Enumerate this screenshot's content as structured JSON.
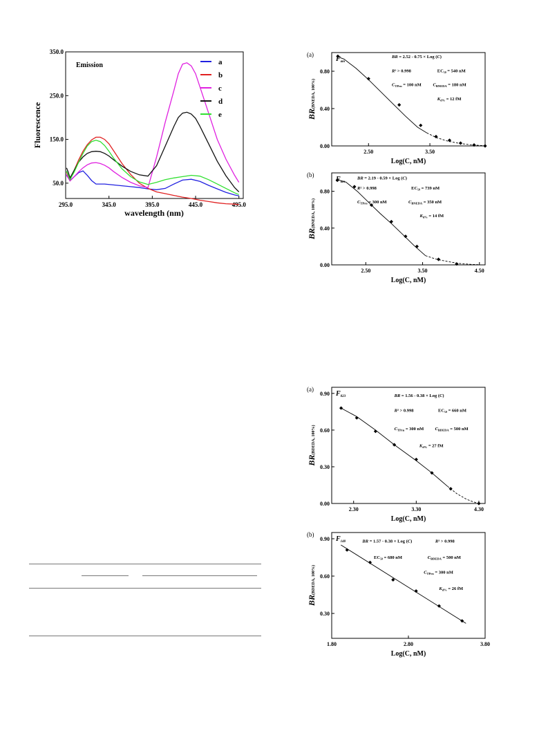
{
  "chart_data": [
    {
      "type": "line",
      "title": "Emission",
      "xlabel": "wavelength (nm)",
      "ylabel": "Fluorescence",
      "xlim": [
        295,
        500
      ],
      "ylim": [
        15,
        350
      ],
      "xticks": [
        "295.0",
        "345.0",
        "395.0",
        "445.0",
        "495.0"
      ],
      "yticks": [
        "50.0",
        "150.0",
        "250.0",
        "350.0"
      ],
      "legend_position": "top-right",
      "series": [
        {
          "name": "a",
          "color": "#2020e0",
          "x": [
            296,
            298,
            300,
            305,
            310,
            315,
            320,
            325,
            330,
            340,
            350,
            360,
            370,
            380,
            390,
            400,
            410,
            420,
            430,
            440,
            450,
            460,
            470,
            480,
            490,
            495
          ],
          "y": [
            68,
            62,
            56,
            65,
            74,
            78,
            68,
            56,
            48,
            48,
            46,
            44,
            42,
            40,
            37,
            35,
            38,
            48,
            57,
            59,
            54,
            45,
            37,
            29,
            23,
            21
          ]
        },
        {
          "name": "b",
          "color": "#e02020",
          "x": [
            296,
            298,
            300,
            305,
            310,
            315,
            320,
            325,
            330,
            335,
            340,
            345,
            350,
            360,
            370,
            380,
            390,
            400,
            410,
            420,
            430,
            440,
            450,
            460,
            470,
            480,
            490,
            495
          ],
          "y": [
            75,
            66,
            58,
            80,
            103,
            123,
            138,
            149,
            155,
            155,
            150,
            140,
            125,
            95,
            70,
            50,
            38,
            30,
            26,
            22,
            18,
            15,
            11,
            8,
            5,
            3,
            2,
            1
          ]
        },
        {
          "name": "c",
          "color": "#e020e0",
          "x": [
            296,
            298,
            300,
            305,
            310,
            315,
            320,
            325,
            330,
            335,
            340,
            345,
            350,
            360,
            370,
            380,
            390,
            400,
            410,
            420,
            425,
            430,
            435,
            440,
            445,
            450,
            460,
            470,
            480,
            490,
            495
          ],
          "y": [
            70,
            62,
            55,
            65,
            76,
            85,
            92,
            96,
            97,
            95,
            91,
            85,
            77,
            63,
            52,
            44,
            40,
            110,
            190,
            262,
            300,
            322,
            325,
            318,
            300,
            270,
            210,
            150,
            105,
            68,
            52
          ]
        },
        {
          "name": "d",
          "color": "#111111",
          "x": [
            296,
            298,
            300,
            305,
            310,
            315,
            320,
            325,
            330,
            335,
            340,
            345,
            350,
            360,
            370,
            380,
            390,
            400,
            410,
            420,
            425,
            430,
            435,
            440,
            445,
            450,
            460,
            470,
            480,
            490,
            495
          ],
          "y": [
            85,
            75,
            62,
            80,
            98,
            110,
            118,
            122,
            123,
            122,
            118,
            112,
            104,
            89,
            77,
            69,
            66,
            90,
            135,
            180,
            200,
            210,
            212,
            208,
            198,
            180,
            140,
            100,
            67,
            40,
            30
          ]
        },
        {
          "name": "e",
          "color": "#30e030",
          "x": [
            296,
            298,
            300,
            305,
            310,
            315,
            320,
            325,
            330,
            335,
            340,
            345,
            350,
            360,
            370,
            380,
            390,
            400,
            410,
            420,
            430,
            440,
            450,
            460,
            470,
            480,
            490,
            495
          ],
          "y": [
            78,
            68,
            58,
            76,
            98,
            118,
            135,
            145,
            148,
            145,
            136,
            123,
            108,
            83,
            65,
            53,
            47,
            52,
            58,
            62,
            65,
            68,
            66,
            58,
            48,
            38,
            28,
            24
          ]
        }
      ]
    },
    {
      "type": "scatter",
      "panel_label": "(a)",
      "fp_label_main": "F",
      "fp_label_sub": "am",
      "xlabel": "Log(C, nM)",
      "ylabel_main": "BR",
      "ylabel_sub": "(BNEDA, 100%)",
      "xlim": [
        1.9,
        4.4
      ],
      "ylim": [
        0,
        1.0
      ],
      "xticks": [
        {
          "v": 2.5,
          "label": "2.50"
        },
        {
          "v": 3.5,
          "label": "3.50"
        }
      ],
      "yticks": [
        {
          "v": 0,
          "label": "0.00"
        },
        {
          "v": 0.4,
          "label": "0.40"
        },
        {
          "v": 0.8,
          "label": "0.80"
        }
      ],
      "annotations": [
        {
          "text": "BR = 2.52 - 0.75 × Log (C)",
          "x": 2.88,
          "y": 0.94
        },
        {
          "text": "R² > 0.998",
          "x": 2.88,
          "y": 0.79
        },
        {
          "text": "EC₅₀ = 540 nM",
          "x": 3.62,
          "y": 0.79
        },
        {
          "text": "C_TPrn = 100 nM",
          "x": 2.88,
          "y": 0.64
        },
        {
          "text": "C_BNEDA = 180 nM",
          "x": 3.55,
          "y": 0.64
        },
        {
          "text": "K_d% = 12 fM",
          "x": 3.62,
          "y": 0.49
        }
      ],
      "points": {
        "x": [
          2.0,
          2.5,
          3.0,
          3.35,
          3.6,
          3.82,
          4.0,
          4.22,
          4.4
        ],
        "y": [
          0.96,
          0.72,
          0.44,
          0.22,
          0.1,
          0.06,
          0.03,
          0.01,
          0.0
        ]
      },
      "fit_solid": {
        "x": [
          1.98,
          2.1,
          2.3,
          2.5,
          2.7,
          2.9,
          3.1,
          3.3,
          3.45
        ],
        "y": [
          0.96,
          0.93,
          0.83,
          0.71,
          0.58,
          0.45,
          0.32,
          0.2,
          0.14
        ]
      },
      "fit_dashed": {
        "x": [
          3.45,
          3.6,
          3.8,
          4.0,
          4.2,
          4.4
        ],
        "y": [
          0.14,
          0.09,
          0.05,
          0.025,
          0.01,
          0.002
        ]
      }
    },
    {
      "type": "scatter",
      "panel_label": "(b)",
      "fp_label_main": "F",
      "fp_label_sub": "am",
      "xlabel": "Log(C, nM)",
      "ylabel_main": "BR",
      "ylabel_sub": "(BNEDA, 100%)",
      "xlim": [
        1.9,
        4.6
      ],
      "ylim": [
        0,
        1.0
      ],
      "xticks": [
        {
          "v": 2.5,
          "label": "2.50"
        },
        {
          "v": 3.5,
          "label": "3.50"
        },
        {
          "v": 4.5,
          "label": "4.50"
        }
      ],
      "yticks": [
        {
          "v": 0,
          "label": "0.00"
        },
        {
          "v": 0.4,
          "label": "0.40"
        },
        {
          "v": 0.8,
          "label": "0.80"
        }
      ],
      "annotations": [
        {
          "text": "BR = 2.19 - 0.59 × Log (C)",
          "x": 2.35,
          "y": 0.93
        },
        {
          "text": "R² > 0.998",
          "x": 2.35,
          "y": 0.82
        },
        {
          "text": "EC₅₀ = 739 nM",
          "x": 3.3,
          "y": 0.82
        },
        {
          "text": "C_TPrn = 300 nM",
          "x": 2.35,
          "y": 0.67
        },
        {
          "text": "C_BNEDA = 350 nM",
          "x": 3.25,
          "y": 0.67
        },
        {
          "text": "K_d% = 14 fM",
          "x": 3.45,
          "y": 0.52
        }
      ],
      "points": {
        "x": [
          2.0,
          2.3,
          2.6,
          2.95,
          3.2,
          3.4,
          3.78,
          4.1
        ],
        "y": [
          0.92,
          0.85,
          0.65,
          0.47,
          0.31,
          0.2,
          0.06,
          0.01
        ]
      },
      "fit_solid": {
        "x": [
          1.98,
          2.15,
          2.35,
          2.55,
          2.75,
          2.95,
          3.15,
          3.35,
          3.55
        ],
        "y": [
          0.93,
          0.9,
          0.8,
          0.68,
          0.56,
          0.45,
          0.33,
          0.21,
          0.1
        ]
      },
      "fit_dashed": {
        "x": [
          3.55,
          3.75,
          3.95,
          4.15,
          4.35,
          4.5
        ],
        "y": [
          0.1,
          0.06,
          0.035,
          0.015,
          0.005,
          0.002
        ]
      }
    },
    {
      "type": "scatter",
      "panel_label": "(a)",
      "fp_label_main": "F",
      "fp_label_sub": "023",
      "xlabel": "Log(C, nM)",
      "ylabel_main": "BR",
      "ylabel_sub": "(BDEDA, 100%)",
      "xlim": [
        1.95,
        4.4
      ],
      "ylim": [
        0,
        0.95
      ],
      "xticks": [
        {
          "v": 2.3,
          "label": "2.30"
        },
        {
          "v": 3.3,
          "label": "3.30"
        },
        {
          "v": 4.3,
          "label": "4.30"
        }
      ],
      "yticks": [
        {
          "v": 0,
          "label": "0.00"
        },
        {
          "v": 0.3,
          "label": "0.30"
        },
        {
          "v": 0.6,
          "label": "0.60"
        },
        {
          "v": 0.9,
          "label": "0.90"
        }
      ],
      "annotations": [
        {
          "text": "BR = 1.56 - 0.38 × Log (C)",
          "x": 2.95,
          "y": 0.87
        },
        {
          "text": "R² > 0.998",
          "x": 2.95,
          "y": 0.75
        },
        {
          "text": "EC₅₀ = 660 nM",
          "x": 3.65,
          "y": 0.75
        },
        {
          "text": "C_TPrn = 300 nM",
          "x": 2.95,
          "y": 0.6
        },
        {
          "text": "C_BDEDA = 500 nM",
          "x": 3.6,
          "y": 0.6
        },
        {
          "text": "K_d% = 27 fM",
          "x": 3.35,
          "y": 0.46
        }
      ],
      "points": {
        "x": [
          2.1,
          2.35,
          2.65,
          2.95,
          3.3,
          3.55,
          3.85,
          4.3
        ],
        "y": [
          0.78,
          0.7,
          0.59,
          0.48,
          0.36,
          0.25,
          0.12,
          0.0
        ]
      },
      "fit_solid": {
        "x": [
          2.1,
          2.35,
          2.65,
          2.95,
          3.3,
          3.55,
          3.8
        ],
        "y": [
          0.78,
          0.71,
          0.6,
          0.48,
          0.35,
          0.25,
          0.14
        ]
      },
      "fit_dashed": {
        "x": [
          3.8,
          3.95,
          4.1,
          4.2,
          4.3
        ],
        "y": [
          0.14,
          0.08,
          0.035,
          0.015,
          0.0
        ]
      }
    },
    {
      "type": "scatter",
      "panel_label": "(b)",
      "fp_label_main": "F",
      "fp_label_sub": "140",
      "xlabel": "Log(C, nM)",
      "ylabel_main": "BR",
      "ylabel_sub": "(BDEDA, 100%)",
      "xlim": [
        1.8,
        3.8
      ],
      "ylim": [
        0.1,
        0.95
      ],
      "xticks": [
        {
          "v": 1.8,
          "label": "1.80"
        },
        {
          "v": 2.8,
          "label": "2.80"
        },
        {
          "v": 3.8,
          "label": "3.80"
        }
      ],
      "yticks": [
        {
          "v": 0.3,
          "label": "0.30"
        },
        {
          "v": 0.6,
          "label": "0.60"
        },
        {
          "v": 0.9,
          "label": "0.90"
        }
      ],
      "annotations": [
        {
          "text": "BR = 1.57 - 0.38 × Log (C)",
          "x": 2.2,
          "y": 0.87
        },
        {
          "text": "R² > 0.998",
          "x": 3.15,
          "y": 0.87
        },
        {
          "text": "EC₅₀ = 680 nM",
          "x": 2.35,
          "y": 0.74
        },
        {
          "text": "C_BDEDA = 500 nM",
          "x": 3.05,
          "y": 0.74
        },
        {
          "text": "C_TPrn = 300 nM",
          "x": 3.0,
          "y": 0.62
        },
        {
          "text": "K_d% = 26 fM",
          "x": 3.2,
          "y": 0.49
        }
      ],
      "points": {
        "x": [
          2.0,
          2.3,
          2.6,
          2.9,
          3.2,
          3.5
        ],
        "y": [
          0.81,
          0.71,
          0.57,
          0.48,
          0.36,
          0.24
        ]
      },
      "fit_solid": {
        "x": [
          1.92,
          3.55
        ],
        "y": [
          0.85,
          0.22
        ]
      },
      "fit_dashed": {
        "x": [],
        "y": []
      }
    }
  ]
}
